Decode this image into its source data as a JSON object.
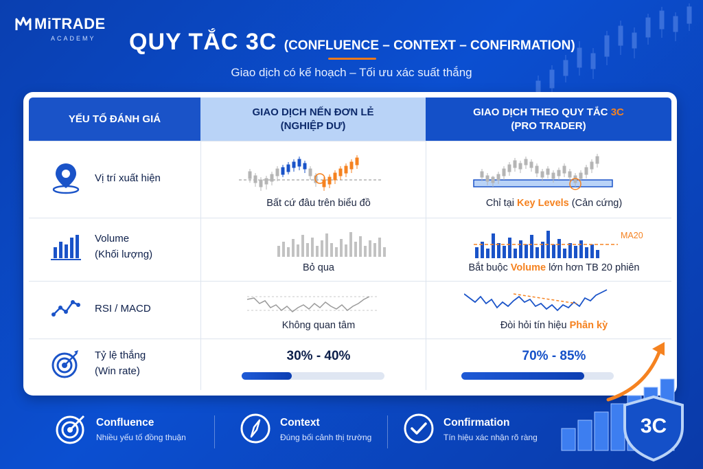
{
  "brand": {
    "name": "MiTRADE",
    "sub": "ACADEMY"
  },
  "header": {
    "title_main": "QUY TẮC 3C",
    "title_paren": "(CONFLUENCE – CONTEXT – CONFIRMATION)",
    "subtitle": "Giao dịch có kế hoạch – Tối ưu xác suất thắng"
  },
  "table": {
    "col1": "YẾU TỐ ĐÁNH GIÁ",
    "col2_line1": "GIAO DỊCH NẾN ĐƠN LẺ",
    "col2_line2": "(NGHIỆP DƯ)",
    "col3_line1_a": "GIAO DỊCH THEO QUY TẮC ",
    "col3_line1_b": "3C",
    "col3_line2": "(PRO TRADER)",
    "rows": [
      {
        "label": "Vị trí xuất hiện",
        "amateur": "Bất cứ đâu trên biểu đồ",
        "pro_a": "Chỉ tại ",
        "pro_hl": "Key Levels",
        "pro_b": " (Cản cứng)"
      },
      {
        "label_1": "Volume",
        "label_2": "(Khối lượng)",
        "amateur": "Bỏ qua",
        "pro_a": "Bắt buộc ",
        "pro_hl": "Volume",
        "pro_b": " lớn hơn TB 20 phiên",
        "ma_label": "MA20"
      },
      {
        "label": "RSI / MACD",
        "amateur": "Không quan tâm",
        "pro_a": "Đòi hỏi tín hiệu ",
        "pro_hl": "Phân kỳ"
      },
      {
        "label_1": "Tỷ lệ thắng",
        "label_2": "(Win rate)",
        "amateur_pct": "30% - 40%",
        "pro_pct": "70% - 85%",
        "amateur_fill": 0.35,
        "pro_fill": 0.805
      }
    ]
  },
  "footer": [
    {
      "title": "Confluence",
      "desc": "Nhiều yếu tố đồng thuận"
    },
    {
      "title": "Context",
      "desc": "Đúng bối cảnh thị trường"
    },
    {
      "title": "Confirmation",
      "desc": "Tín hiệu xác nhận rõ ràng"
    }
  ],
  "badge": "3C",
  "colors": {
    "primary": "#1450c8",
    "accent": "#f58220",
    "light": "#b9d3f7"
  }
}
